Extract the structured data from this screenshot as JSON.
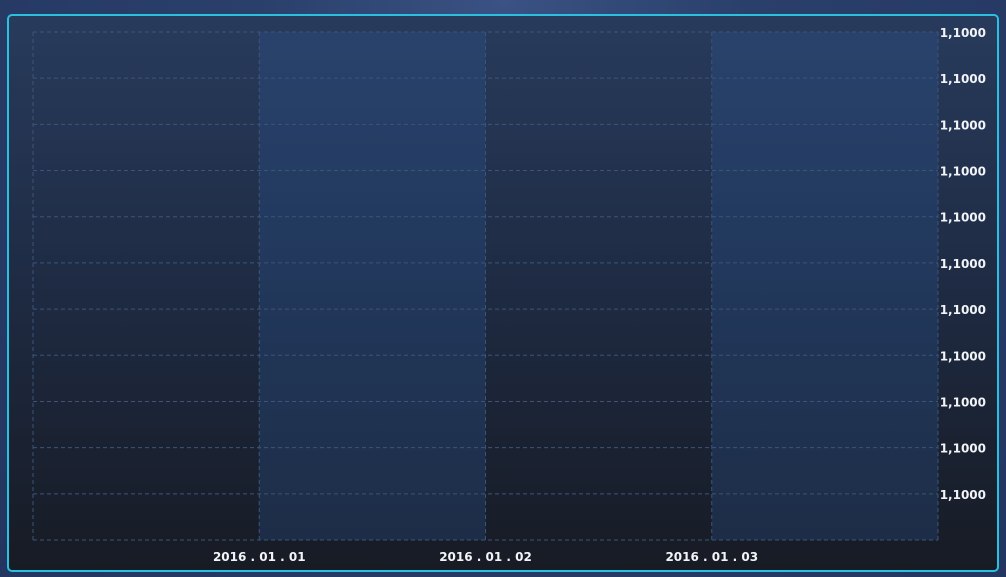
{
  "chart_data": {
    "type": "bar",
    "title": "",
    "xlabel": "",
    "ylabel": "",
    "categories": [
      "",
      "2016 . 01 . 01",
      "2016 . 01 . 02",
      "2016 . 01 . 03"
    ],
    "x_tick_labels": [
      "2016 . 01 . 01",
      "2016 . 01 . 02",
      "2016 . 01 . 03"
    ],
    "y_tick_labels": [
      "1,1000",
      "1,1000",
      "1,1000",
      "1,1000",
      "1,1000",
      "1,1000",
      "1,1000",
      "1,1000",
      "1,1000",
      "1,1000",
      "1,1000"
    ],
    "y_axis_position": "right",
    "grid": true,
    "grid_style": "dashed",
    "series": [],
    "colors": {
      "frame_border": "#2bbfe0",
      "alt_column": "#2a5a9a",
      "grid": "#3d5478",
      "tick_text": "#f2f4f8"
    }
  }
}
